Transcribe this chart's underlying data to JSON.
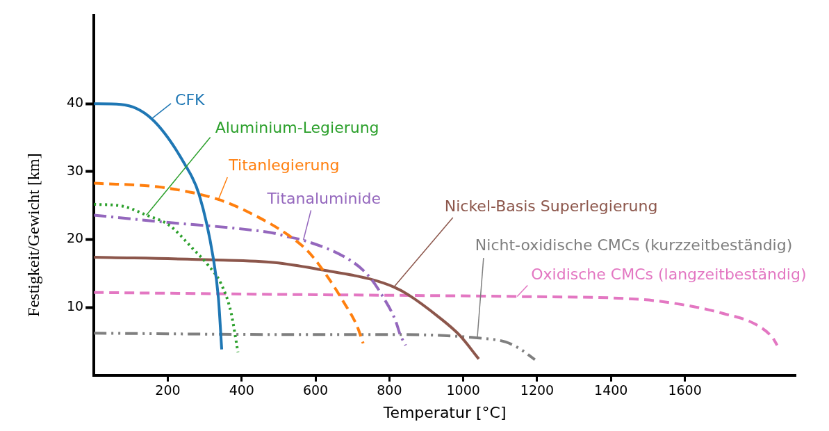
{
  "chart_data": {
    "type": "line",
    "xlabel": "Temperatur [°C]",
    "ylabel": "Festigkeit/Gewicht [km]",
    "xlim": [
      0,
      1900
    ],
    "ylim": [
      0,
      53
    ],
    "xticks": [
      200,
      400,
      600,
      800,
      1000,
      1200,
      1400,
      1600
    ],
    "yticks": [
      10,
      20,
      30,
      40
    ],
    "grid": false,
    "legend": false,
    "marker": "none",
    "series": [
      {
        "name": "CFK",
        "color": "#1f77b4",
        "line_style": "solid",
        "x": [
          0,
          73,
          156,
          246,
          285,
          323,
          337,
          346
        ],
        "values": [
          40,
          39.9,
          37.8,
          31.1,
          26.6,
          17.3,
          11.4,
          3.8
        ]
      },
      {
        "name": "Aluminium-Legierung",
        "color": "#2ca02c",
        "line_style": "dotted",
        "x": [
          0,
          79,
          142,
          204,
          267,
          308,
          344,
          371,
          390
        ],
        "values": [
          25.2,
          24.9,
          23.6,
          22.1,
          18.7,
          16.3,
          13.5,
          9.3,
          3.4
        ]
      },
      {
        "name": "Titanlegierung",
        "color": "#ff7f0e",
        "line_style": "dashed",
        "x": [
          0,
          183,
          337,
          427,
          525,
          579,
          629,
          677,
          712,
          729
        ],
        "values": [
          28.3,
          27.7,
          25.9,
          23.8,
          20.7,
          18.3,
          14.8,
          10.7,
          7.3,
          4.7
        ]
      },
      {
        "name": "Titanaluminide",
        "color": "#9467bd",
        "line_style": "dashdot",
        "x": [
          0,
          183,
          392,
          490,
          525,
          567,
          698,
          746,
          781,
          817,
          829,
          844
        ],
        "values": [
          23.6,
          22.6,
          21.6,
          20.9,
          20.4,
          19.9,
          16.8,
          14.5,
          11.7,
          8.0,
          6.0,
          4.4
        ]
      },
      {
        "name": "Nickel-Basis Superlegierung",
        "color": "#8c564b",
        "line_style": "solid",
        "x": [
          0,
          323,
          490,
          621,
          746,
          812,
          850,
          933,
          990,
          1042
        ],
        "values": [
          17.4,
          17.0,
          16.6,
          15.5,
          14.2,
          13.0,
          11.9,
          8.6,
          5.9,
          2.4
        ]
      },
      {
        "name": "Nicht-oxidische CMCs (kurzzeitbeständig)",
        "color": "#7f7f7f",
        "line_style": "dashdotdot",
        "x": [
          0,
          531,
          829,
          1038,
          1115,
          1156,
          1194
        ],
        "values": [
          6.2,
          6.0,
          6.0,
          5.5,
          4.9,
          3.8,
          2.3
        ]
      },
      {
        "name": "Oxidische CMCs (langzeitbeständig)",
        "color": "#e377c2",
        "line_style": "dashed",
        "x": [
          0,
          531,
          990,
          1146,
          1475,
          1615,
          1704,
          1788,
          1838,
          1850
        ],
        "values": [
          12.2,
          11.9,
          11.7,
          11.6,
          11.2,
          10.2,
          9.1,
          7.6,
          5.5,
          4.4
        ]
      }
    ]
  }
}
